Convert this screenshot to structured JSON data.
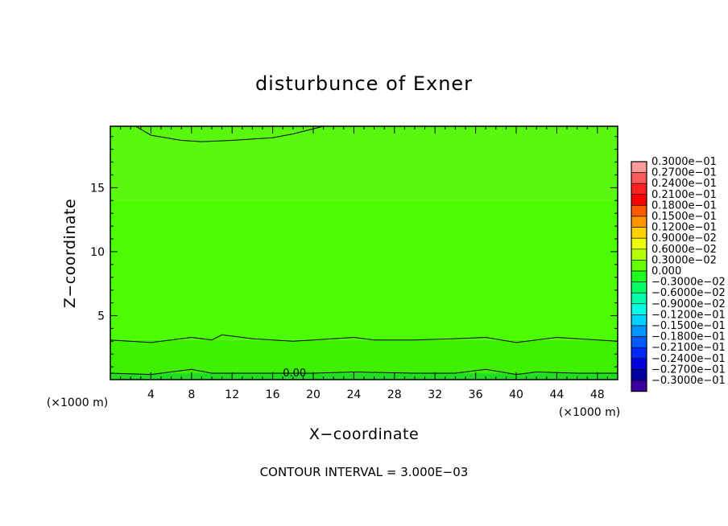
{
  "chart_data": {
    "type": "heatmap",
    "title": "disturbunce of Exner",
    "xlabel": "X−coordinate",
    "ylabel": "Z−coordinate",
    "x_unit_label": "(×1000 m)",
    "y_unit_label": "(×1000 m)",
    "xlim": [
      0,
      50
    ],
    "ylim": [
      0,
      19.8
    ],
    "x_ticks": [
      4,
      8,
      12,
      16,
      20,
      24,
      28,
      32,
      36,
      40,
      44,
      48
    ],
    "y_ticks": [
      5,
      10,
      15
    ],
    "footnote": "CONTOUR INTERVAL = 3.000E−03",
    "contour_interval": 0.003,
    "contour_labels": [
      {
        "text": "0.00",
        "x": 17,
        "z": 0.3
      }
    ],
    "bands": [
      {
        "z_from": 0.0,
        "z_to": 0.5,
        "color": "#22dd22"
      },
      {
        "z_from": 0.5,
        "z_to": 3.1,
        "color": "#3ef000"
      },
      {
        "z_from": 3.1,
        "z_to": 14.0,
        "color": "#4cfc00"
      },
      {
        "z_from": 14.0,
        "z_to": 19.8,
        "color": "#5af80e"
      }
    ],
    "contours": [
      {
        "name": "near-surface",
        "points": [
          [
            0,
            0.5
          ],
          [
            4,
            0.4
          ],
          [
            8,
            0.8
          ],
          [
            10,
            0.5
          ],
          [
            16,
            0.5
          ],
          [
            20,
            0.5
          ],
          [
            24,
            0.6
          ],
          [
            30,
            0.5
          ],
          [
            34,
            0.5
          ],
          [
            37,
            0.8
          ],
          [
            40,
            0.4
          ],
          [
            42,
            0.6
          ],
          [
            46,
            0.5
          ],
          [
            50,
            0.5
          ]
        ]
      },
      {
        "name": "low-level",
        "points": [
          [
            0,
            3.1
          ],
          [
            4,
            2.9
          ],
          [
            8,
            3.3
          ],
          [
            10,
            3.1
          ],
          [
            11,
            3.5
          ],
          [
            14,
            3.2
          ],
          [
            18,
            3.0
          ],
          [
            20,
            3.1
          ],
          [
            24,
            3.3
          ],
          [
            26,
            3.1
          ],
          [
            30,
            3.1
          ],
          [
            34,
            3.2
          ],
          [
            37,
            3.3
          ],
          [
            40,
            2.9
          ],
          [
            44,
            3.3
          ],
          [
            46,
            3.2
          ],
          [
            50,
            3.0
          ]
        ]
      },
      {
        "name": "upper-dome",
        "points": [
          [
            2.5,
            19.8
          ],
          [
            4,
            19.1
          ],
          [
            7,
            18.7
          ],
          [
            9,
            18.6
          ],
          [
            12,
            18.7
          ],
          [
            16,
            18.9
          ],
          [
            18,
            19.2
          ],
          [
            21,
            19.8
          ]
        ]
      }
    ],
    "colorbar": {
      "labels": [
        "0.3000e−01",
        "0.2700e−01",
        "0.2400e−01",
        "0.2100e−01",
        "0.1800e−01",
        "0.1500e−01",
        "0.1200e−01",
        "0.9000e−02",
        "0.6000e−02",
        "0.3000e−02",
        "0.000",
        "−0.3000e−02",
        "−0.6000e−02",
        "−0.9000e−02",
        "−0.1200e−01",
        "−0.1500e−01",
        "−0.1800e−01",
        "−0.2100e−01",
        "−0.2400e−01",
        "−0.2700e−01",
        "−0.3000e−01"
      ],
      "colors": [
        "#ff9b9b",
        "#ff5a5a",
        "#ff2020",
        "#ff0000",
        "#ff5a00",
        "#ff9600",
        "#ffd200",
        "#f0ff00",
        "#b4ff00",
        "#64ff00",
        "#1eff1e",
        "#00ff64",
        "#00ffaa",
        "#00ffe6",
        "#00d2ff",
        "#0096ff",
        "#005aff",
        "#0028ff",
        "#0000dc",
        "#0000a0",
        "#3c00a0"
      ]
    }
  }
}
